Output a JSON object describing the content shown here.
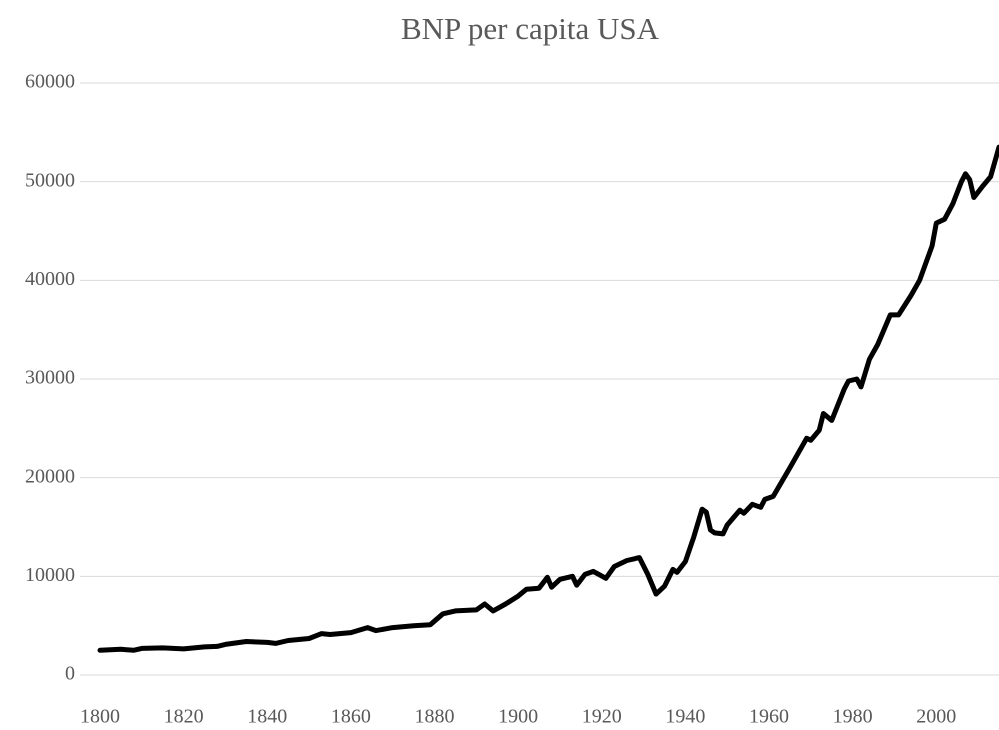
{
  "chart_data": {
    "type": "line",
    "title": "BNP per capita USA",
    "x": [
      1800,
      1805,
      1808,
      1810,
      1815,
      1820,
      1825,
      1828,
      1830,
      1835,
      1840,
      1842,
      1845,
      1850,
      1853,
      1855,
      1860,
      1864,
      1866,
      1870,
      1875,
      1879,
      1882,
      1885,
      1890,
      1892,
      1894,
      1897,
      1900,
      1902,
      1905,
      1907,
      1908,
      1910,
      1913,
      1914,
      1916,
      1918,
      1921,
      1923,
      1926,
      1929,
      1931,
      1933,
      1935,
      1937,
      1938,
      1940,
      1942,
      1944,
      1945,
      1946,
      1947,
      1949,
      1950,
      1953,
      1954,
      1956,
      1958,
      1959,
      1961,
      1965,
      1969,
      1970,
      1972,
      1973,
      1975,
      1978,
      1979,
      1981,
      1982,
      1984,
      1986,
      1989,
      1991,
      1994,
      1996,
      1999,
      2000,
      2002,
      2004,
      2006,
      2007,
      2008,
      2009,
      2011,
      2013,
      2015
    ],
    "series": [
      {
        "name": "BNP per capita",
        "color": "#000000",
        "values": [
          2500,
          2600,
          2500,
          2700,
          2750,
          2650,
          2850,
          2900,
          3100,
          3400,
          3300,
          3200,
          3500,
          3700,
          4200,
          4100,
          4300,
          4800,
          4500,
          4800,
          5000,
          5100,
          6200,
          6500,
          6600,
          7200,
          6500,
          7200,
          8000,
          8700,
          8800,
          9900,
          8900,
          9700,
          10000,
          9100,
          10200,
          10500,
          9800,
          11000,
          11600,
          11900,
          10200,
          8200,
          9000,
          10700,
          10400,
          11500,
          14000,
          16800,
          16500,
          14700,
          14400,
          14300,
          15200,
          16700,
          16400,
          17300,
          17000,
          17800,
          18100,
          21000,
          24000,
          23800,
          24800,
          26500,
          25800,
          29000,
          29800,
          30000,
          29200,
          32000,
          33500,
          36500,
          36500,
          38500,
          40000,
          43500,
          45800,
          46200,
          47800,
          50000,
          50800,
          50200,
          48400,
          49500,
          50500,
          53500
        ]
      }
    ],
    "xlim": [
      1800,
      2015
    ],
    "xticks": [
      1800,
      1820,
      1840,
      1860,
      1880,
      1900,
      1920,
      1940,
      1960,
      1980,
      2000
    ],
    "ylim": [
      0,
      60000
    ],
    "yticks": [
      0,
      10000,
      20000,
      30000,
      40000,
      50000,
      60000
    ],
    "grid": true
  }
}
